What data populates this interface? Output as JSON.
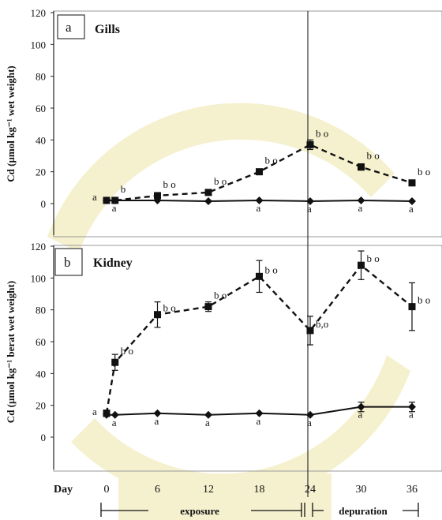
{
  "chart_data": [
    {
      "type": "line",
      "panel_label": "a",
      "title": "Gills",
      "ylabel": "Cd (µmol kg⁻¹ wet weight)",
      "ylim": [
        0,
        120
      ],
      "yticks": [
        0,
        20,
        40,
        60,
        80,
        100,
        120
      ],
      "series": [
        {
          "style": "dashed-square",
          "x": [
            0,
            1,
            6,
            12,
            18,
            24,
            30,
            36
          ],
          "values": [
            2,
            2,
            5,
            7,
            20,
            37,
            23,
            13
          ],
          "errors": [
            1,
            1,
            1,
            1,
            1.5,
            3,
            2,
            1.5
          ],
          "labels": [
            "",
            "b",
            "b o",
            "b o",
            "b o",
            "b o",
            "b o",
            "b o"
          ]
        },
        {
          "style": "solid-diamond",
          "x": [
            0,
            1,
            6,
            12,
            18,
            24,
            30,
            36
          ],
          "values": [
            2,
            2,
            2,
            1.5,
            2,
            1.5,
            2,
            1.5
          ],
          "labels": [
            "a",
            "a",
            "",
            "",
            "a",
            "a",
            "a",
            "a"
          ]
        }
      ]
    },
    {
      "type": "line",
      "panel_label": "b",
      "title": "Kidney",
      "ylabel": "Cd (µmol kg⁻¹ berat wet weight)",
      "ylim": [
        0,
        120
      ],
      "yticks": [
        0,
        20,
        40,
        60,
        80,
        100,
        120
      ],
      "series": [
        {
          "style": "dashed-square",
          "x": [
            0,
            1,
            6,
            12,
            18,
            24,
            30,
            36
          ],
          "values": [
            15,
            47,
            77,
            82,
            101,
            67,
            108,
            82
          ],
          "errors": [
            2,
            5,
            8,
            3,
            10,
            9,
            9,
            15
          ],
          "labels": [
            "",
            "b o",
            "b o",
            "b o",
            "b o",
            "b,o",
            "b o",
            "b o"
          ]
        },
        {
          "style": "solid-diamond",
          "x": [
            0,
            1,
            6,
            12,
            18,
            24,
            30,
            36
          ],
          "values": [
            14,
            14,
            15,
            14,
            15,
            14,
            19,
            19
          ],
          "errors": [
            0,
            0,
            0,
            0,
            0,
            0,
            3,
            3
          ],
          "labels": [
            "a",
            "a",
            "a",
            "a",
            "a",
            "a",
            "a",
            "a"
          ]
        }
      ]
    }
  ],
  "x_axis": {
    "title": "Day",
    "ticks": [
      "0",
      "6",
      "12",
      "18",
      "24",
      "30",
      "36"
    ],
    "tick_values": [
      0,
      6,
      12,
      18,
      24,
      30,
      36
    ]
  },
  "phases": {
    "exposure": "exposure",
    "depuration": "depuration"
  },
  "colors": {
    "line": "#111111",
    "frame": "#333333",
    "watermark": "#f3eec2"
  }
}
